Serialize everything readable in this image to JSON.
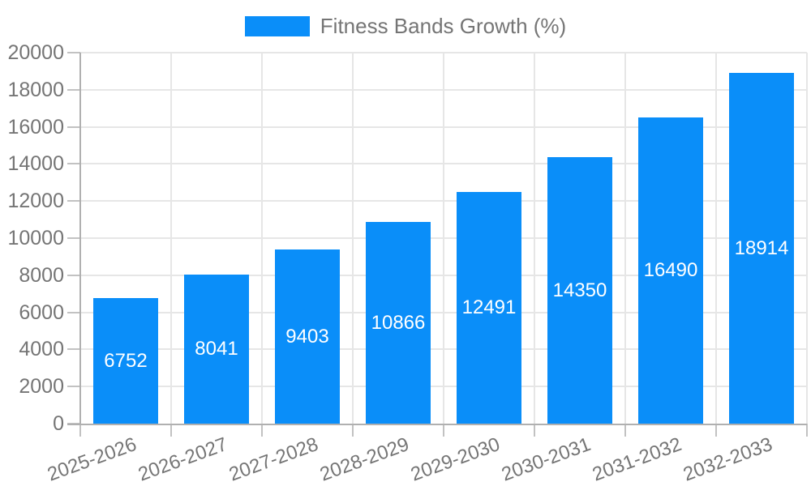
{
  "legend": {
    "label": "Fitness Bands Growth (%)"
  },
  "chart_data": {
    "type": "bar",
    "title": "",
    "categories": [
      "2025-2026",
      "2026-2027",
      "2027-2028",
      "2028-2029",
      "2029-2030",
      "2030-2031",
      "2031-2032",
      "2032-2033"
    ],
    "values": [
      6752,
      8041,
      9403,
      10866,
      12491,
      14350,
      16490,
      18914
    ],
    "series_name": "Fitness Bands Growth (%)",
    "xlabel": "",
    "ylabel": "",
    "ylim": [
      0,
      20000
    ],
    "ytick_step": 2000,
    "yticks": [
      0,
      2000,
      4000,
      6000,
      8000,
      10000,
      12000,
      14000,
      16000,
      18000,
      20000
    ],
    "grid": true,
    "legend_position": "top",
    "x_label_rotation_deg": -20,
    "bar_value_labels_inside": true,
    "colors": {
      "bar": "#0a8ef9",
      "bar_value_label": "#ffffff",
      "axis_text": "#757575",
      "legend_text": "#757575",
      "axis_line": "#b0b0b0",
      "tick": "#c2c2c2",
      "gridline": "#e6e6e6",
      "background": "#ffffff"
    }
  }
}
